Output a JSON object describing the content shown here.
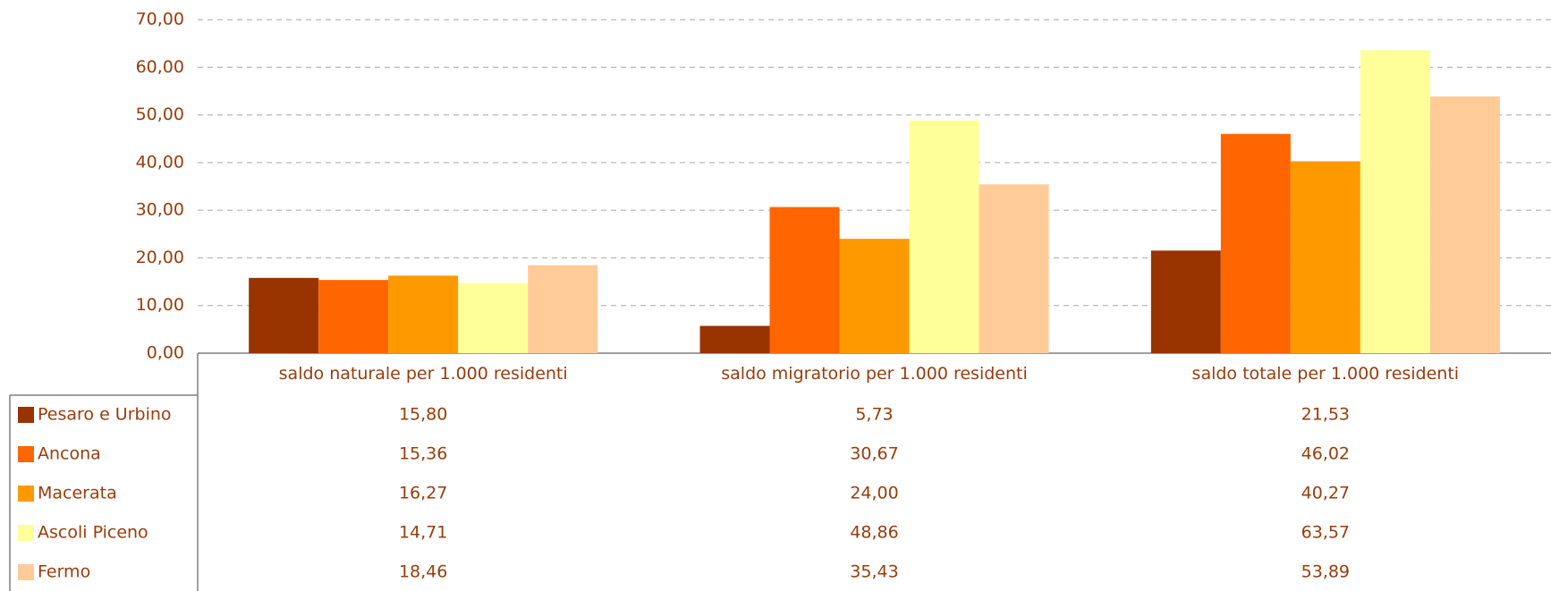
{
  "chart_data": {
    "type": "bar",
    "categories": [
      "saldo naturale per 1.000 residenti",
      "saldo migratorio per 1.000 residenti",
      "saldo totale per 1.000 residenti"
    ],
    "series": [
      {
        "name": "Pesaro e Urbino",
        "color": "#993300",
        "values": [
          15.8,
          5.73,
          21.53
        ],
        "value_labels": [
          "15,80",
          "5,73",
          "21,53"
        ]
      },
      {
        "name": "Ancona",
        "color": "#ff6600",
        "values": [
          15.36,
          30.67,
          46.02
        ],
        "value_labels": [
          "15,36",
          "30,67",
          "46,02"
        ]
      },
      {
        "name": "Macerata",
        "color": "#ff9900",
        "values": [
          16.27,
          24.0,
          40.27
        ],
        "value_labels": [
          "16,27",
          "24,00",
          "40,27"
        ]
      },
      {
        "name": "Ascoli Piceno",
        "color": "#ffff99",
        "values": [
          14.71,
          48.86,
          63.57
        ],
        "value_labels": [
          "14,71",
          "48,86",
          "63,57"
        ]
      },
      {
        "name": "Fermo",
        "color": "#ffcc99",
        "values": [
          18.46,
          35.43,
          53.89
        ],
        "value_labels": [
          "18,46",
          "35,43",
          "53,89"
        ]
      }
    ],
    "ylim": [
      0,
      70
    ],
    "yticks": [
      {
        "value": 0,
        "label": "0,00"
      },
      {
        "value": 10,
        "label": "10,00"
      },
      {
        "value": 20,
        "label": "20,00"
      },
      {
        "value": 30,
        "label": "30,00"
      },
      {
        "value": 40,
        "label": "40,00"
      },
      {
        "value": 50,
        "label": "50,00"
      },
      {
        "value": 60,
        "label": "60,00"
      },
      {
        "value": 70,
        "label": "70,00"
      }
    ],
    "grid": true
  }
}
